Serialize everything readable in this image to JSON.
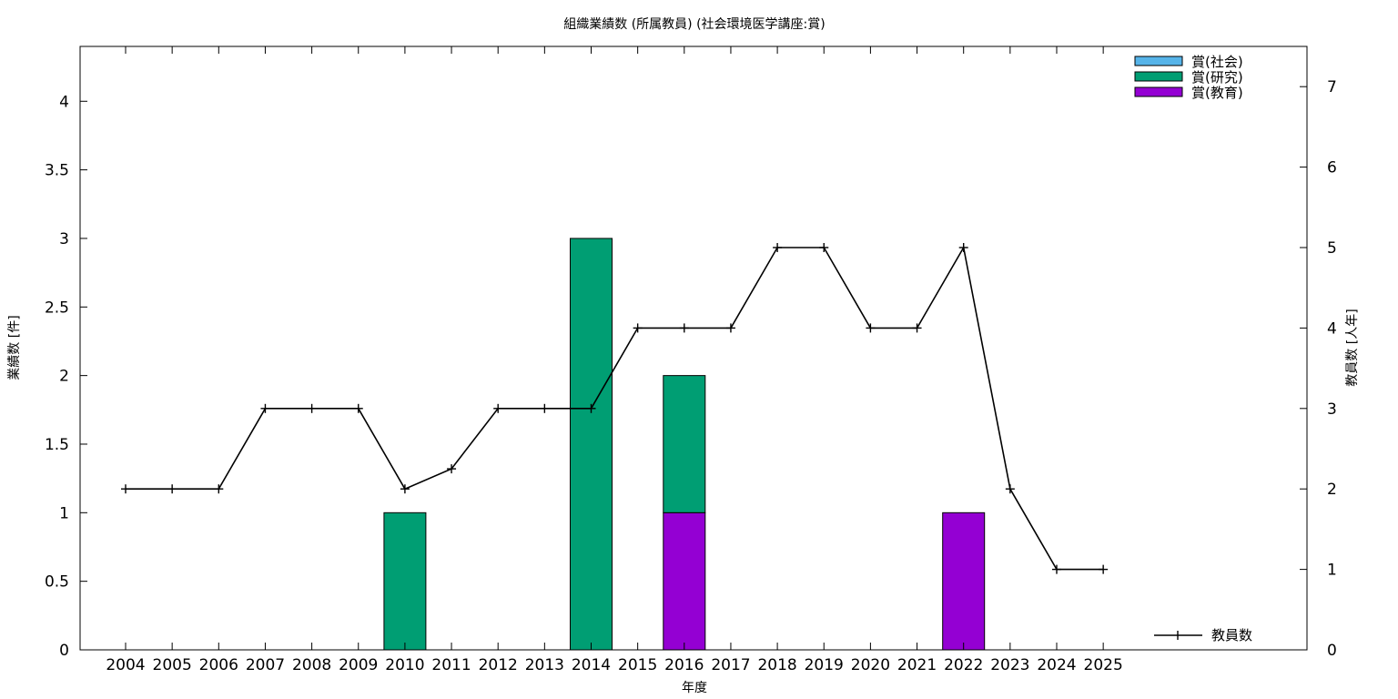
{
  "chart_data": {
    "type": "bar",
    "title": "組織業績数 (所属教員) (社会環境医学講座:賞)",
    "xlabel": "年度",
    "ylabel": "業績数 [件]",
    "y2label": "教員数 [人年]",
    "categories": [
      "2004",
      "2005",
      "2006",
      "2007",
      "2008",
      "2009",
      "2010",
      "2011",
      "2012",
      "2013",
      "2014",
      "2015",
      "2016",
      "2017",
      "2018",
      "2019",
      "2020",
      "2021",
      "2022",
      "2023",
      "2024",
      "2025"
    ],
    "ylim": [
      0,
      4.4
    ],
    "yticks": [
      "0",
      "0.5",
      "1",
      "1.5",
      "2",
      "2.5",
      "3",
      "3.5",
      "4"
    ],
    "y2lim": [
      0,
      7.5
    ],
    "y2ticks": [
      "0",
      "1",
      "2",
      "3",
      "4",
      "5",
      "6",
      "7"
    ],
    "stacked": true,
    "legend_position": "top-right",
    "series": [
      {
        "name": "賞(社会)",
        "color": "#56b4e9",
        "values": [
          0,
          0,
          0,
          0,
          0,
          0,
          0,
          0,
          0,
          0,
          0,
          0,
          0,
          0,
          0,
          0,
          0,
          0,
          0,
          0,
          0,
          0
        ]
      },
      {
        "name": "賞(研究)",
        "color": "#009e73",
        "values": [
          0,
          0,
          0,
          0,
          0,
          0,
          1,
          0,
          0,
          0,
          3,
          0,
          1,
          0,
          0,
          0,
          0,
          0,
          0,
          0,
          0,
          0
        ]
      },
      {
        "name": "賞(教育)",
        "color": "#9400d3",
        "values": [
          0,
          0,
          0,
          0,
          0,
          0,
          0,
          0,
          0,
          0,
          0,
          0,
          1,
          0,
          0,
          0,
          0,
          0,
          1,
          0,
          0,
          0
        ]
      }
    ],
    "line_series": {
      "name": "教員数",
      "color": "#000000",
      "axis": "y2",
      "values": [
        2,
        2,
        2,
        3,
        3,
        3,
        2,
        2.25,
        3,
        3,
        3,
        4,
        4,
        4,
        5,
        5,
        4,
        4,
        5,
        2,
        1,
        1
      ]
    }
  }
}
